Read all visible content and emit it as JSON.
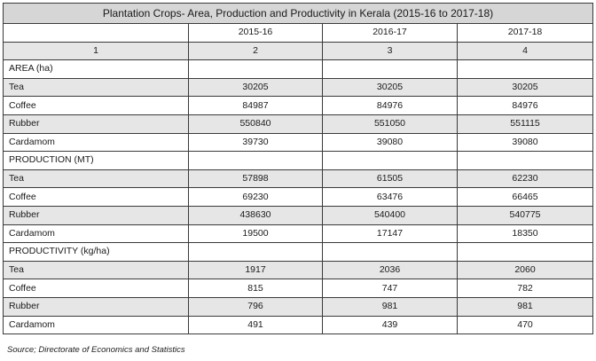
{
  "title": "Plantation Crops- Area, Production and Productivity in Kerala (2015-16 to 2017-18)",
  "years": [
    "2015-16",
    "2016-17",
    "2017-18"
  ],
  "column_numbers": [
    "1",
    "2",
    "3",
    "4"
  ],
  "sections": [
    {
      "heading": "AREA (ha)",
      "rows": [
        {
          "crop": "Tea",
          "values": [
            "30205",
            "30205",
            "30205"
          ]
        },
        {
          "crop": "Coffee",
          "values": [
            "84987",
            "84976",
            "84976"
          ]
        },
        {
          "crop": "Rubber",
          "values": [
            "550840",
            "551050",
            "551115"
          ]
        },
        {
          "crop": "Cardamom",
          "values": [
            "39730",
            "39080",
            "39080"
          ]
        }
      ]
    },
    {
      "heading": "PRODUCTION (MT)",
      "rows": [
        {
          "crop": "Tea",
          "values": [
            "57898",
            "61505",
            "62230"
          ]
        },
        {
          "crop": "Coffee",
          "values": [
            "69230",
            "63476",
            "66465"
          ]
        },
        {
          "crop": "Rubber",
          "values": [
            "438630",
            "540400",
            "540775"
          ]
        },
        {
          "crop": "Cardamom",
          "values": [
            "19500",
            "17147",
            "18350"
          ]
        }
      ]
    },
    {
      "heading": "PRODUCTIVITY (kg/ha)",
      "rows": [
        {
          "crop": "Tea",
          "values": [
            "1917",
            "2036",
            "2060"
          ]
        },
        {
          "crop": "Coffee",
          "values": [
            "815",
            "747",
            "782"
          ]
        },
        {
          "crop": "Rubber",
          "values": [
            "796",
            "981",
            "981"
          ]
        },
        {
          "crop": "Cardamom",
          "values": [
            "491",
            "439",
            "470"
          ]
        }
      ]
    }
  ],
  "source": "Source; Directorate of Economics and Statistics"
}
